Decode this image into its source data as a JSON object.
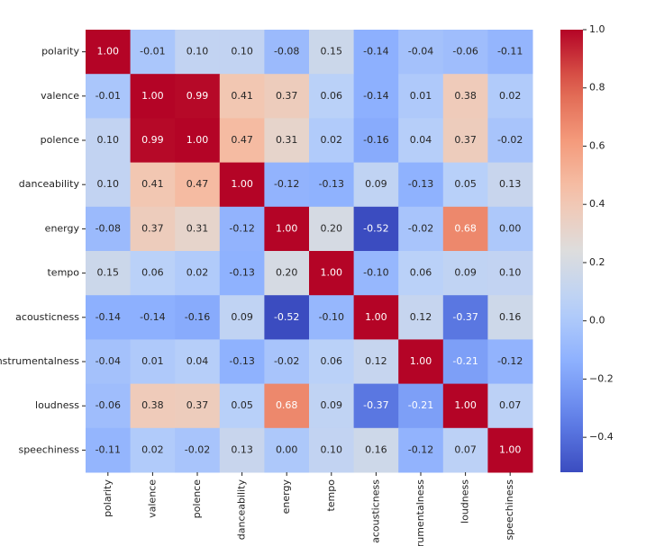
{
  "chart_data": {
    "type": "heatmap",
    "categories": [
      "polarity",
      "valence",
      "polence",
      "danceability",
      "energy",
      "tempo",
      "acousticness",
      "instrumentalness",
      "loudness",
      "speechiness"
    ],
    "values": [
      [
        1.0,
        -0.01,
        0.1,
        0.1,
        -0.08,
        0.15,
        -0.14,
        -0.04,
        -0.06,
        -0.11
      ],
      [
        -0.01,
        1.0,
        0.99,
        0.41,
        0.37,
        0.06,
        -0.14,
        0.01,
        0.38,
        0.02
      ],
      [
        0.1,
        0.99,
        1.0,
        0.47,
        0.31,
        0.02,
        -0.16,
        0.04,
        0.37,
        -0.02
      ],
      [
        0.1,
        0.41,
        0.47,
        1.0,
        -0.12,
        -0.13,
        0.09,
        -0.13,
        0.05,
        0.13
      ],
      [
        -0.08,
        0.37,
        0.31,
        -0.12,
        1.0,
        0.2,
        -0.52,
        -0.02,
        0.68,
        0.0
      ],
      [
        0.15,
        0.06,
        0.02,
        -0.13,
        0.2,
        1.0,
        -0.1,
        0.06,
        0.09,
        0.1
      ],
      [
        -0.14,
        -0.14,
        -0.16,
        0.09,
        -0.52,
        -0.1,
        1.0,
        0.12,
        -0.37,
        0.16
      ],
      [
        -0.04,
        0.01,
        0.04,
        -0.13,
        -0.02,
        0.06,
        0.12,
        1.0,
        -0.21,
        -0.12
      ],
      [
        -0.06,
        0.38,
        0.37,
        0.05,
        0.68,
        0.09,
        -0.37,
        -0.21,
        1.0,
        0.07
      ],
      [
        -0.11,
        0.02,
        -0.02,
        0.13,
        0.0,
        0.1,
        0.16,
        -0.12,
        0.07,
        1.0
      ]
    ],
    "value_labels": [
      [
        "1.00",
        "-0.01",
        "0.10",
        "0.10",
        "-0.08",
        "0.15",
        "-0.14",
        "-0.04",
        "-0.06",
        "-0.11"
      ],
      [
        "-0.01",
        "1.00",
        "0.99",
        "0.41",
        "0.37",
        "0.06",
        "-0.14",
        "0.01",
        "0.38",
        "0.02"
      ],
      [
        "0.10",
        "0.99",
        "1.00",
        "0.47",
        "0.31",
        "0.02",
        "-0.16",
        "0.04",
        "0.37",
        "-0.02"
      ],
      [
        "0.10",
        "0.41",
        "0.47",
        "1.00",
        "-0.12",
        "-0.13",
        "0.09",
        "-0.13",
        "0.05",
        "0.13"
      ],
      [
        "-0.08",
        "0.37",
        "0.31",
        "-0.12",
        "1.00",
        "0.20",
        "-0.52",
        "-0.02",
        "0.68",
        "0.00"
      ],
      [
        "0.15",
        "0.06",
        "0.02",
        "-0.13",
        "0.20",
        "1.00",
        "-0.10",
        "0.06",
        "0.09",
        "0.10"
      ],
      [
        "-0.14",
        "-0.14",
        "-0.16",
        "0.09",
        "-0.52",
        "-0.10",
        "1.00",
        "0.12",
        "-0.37",
        "0.16"
      ],
      [
        "-0.04",
        "0.01",
        "0.04",
        "-0.13",
        "-0.02",
        "0.06",
        "0.12",
        "1.00",
        "-0.21",
        "-0.12"
      ],
      [
        "-0.06",
        "0.38",
        "0.37",
        "0.05",
        "0.68",
        "0.09",
        "-0.37",
        "-0.21",
        "1.00",
        "0.07"
      ],
      [
        "-0.11",
        "0.02",
        "-0.02",
        "0.13",
        "0.00",
        "0.10",
        "0.16",
        "-0.12",
        "0.07",
        "1.00"
      ]
    ],
    "colormap": "coolwarm",
    "clim": [
      -0.52,
      1.0
    ],
    "cticks": [
      {
        "value": 1.0,
        "label": "1.0"
      },
      {
        "value": 0.8,
        "label": "0.8"
      },
      {
        "value": 0.6,
        "label": "0.6"
      },
      {
        "value": 0.4,
        "label": "0.4"
      },
      {
        "value": 0.2,
        "label": "0.2"
      },
      {
        "value": 0.0,
        "label": "0.0"
      },
      {
        "value": -0.2,
        "label": "−0.2"
      },
      {
        "value": -0.4,
        "label": "−0.4"
      }
    ]
  }
}
